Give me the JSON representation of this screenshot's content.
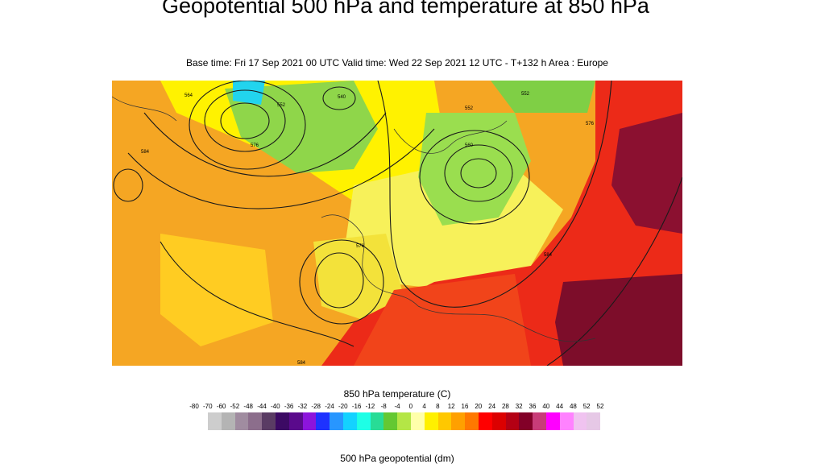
{
  "header": {
    "title": "Geopotential 500 hPa and temperature at 850 hPa",
    "subtitle": "Base time: Fri 17 Sep 2021 00 UTC Valid time: Wed 22 Sep 2021 12 UTC - T+132 h Area : Europe"
  },
  "map": {
    "contour_labels": [
      "564",
      "552",
      "576",
      "584",
      "560",
      "576",
      "584",
      "552",
      "540",
      "576",
      "584",
      "552"
    ]
  },
  "legend_temperature": {
    "title": "850 hPa temperature (C)",
    "ticks": [
      "-80",
      "-70",
      "-60",
      "-52",
      "-48",
      "-44",
      "-40",
      "-36",
      "-32",
      "-28",
      "-24",
      "-20",
      "-16",
      "-12",
      "-8",
      "-4",
      "0",
      "4",
      "8",
      "12",
      "16",
      "20",
      "24",
      "28",
      "32",
      "36",
      "40",
      "44",
      "48",
      "52",
      "52"
    ],
    "colors": [
      "#e6e6e6",
      "#cdcdcd",
      "#b4b4b4",
      "#a08ca0",
      "#8c6e8c",
      "#5a3c64",
      "#3c0a64",
      "#5a0a8c",
      "#8c14dc",
      "#1e32ff",
      "#2896ff",
      "#14d2ff",
      "#1effe6",
      "#28dc96",
      "#64c832",
      "#b4e646",
      "#ffffaa",
      "#fff000",
      "#ffc800",
      "#ffa000",
      "#ff7800",
      "#ff0000",
      "#dc0000",
      "#b40014",
      "#820028",
      "#c83c78",
      "#ff00ff",
      "#ff82ff",
      "#f0c3f0",
      "#e6c8e6",
      "#e6e6e6"
    ]
  },
  "legend_geopotential": {
    "title": "500 hPa geopotential (dm)"
  }
}
